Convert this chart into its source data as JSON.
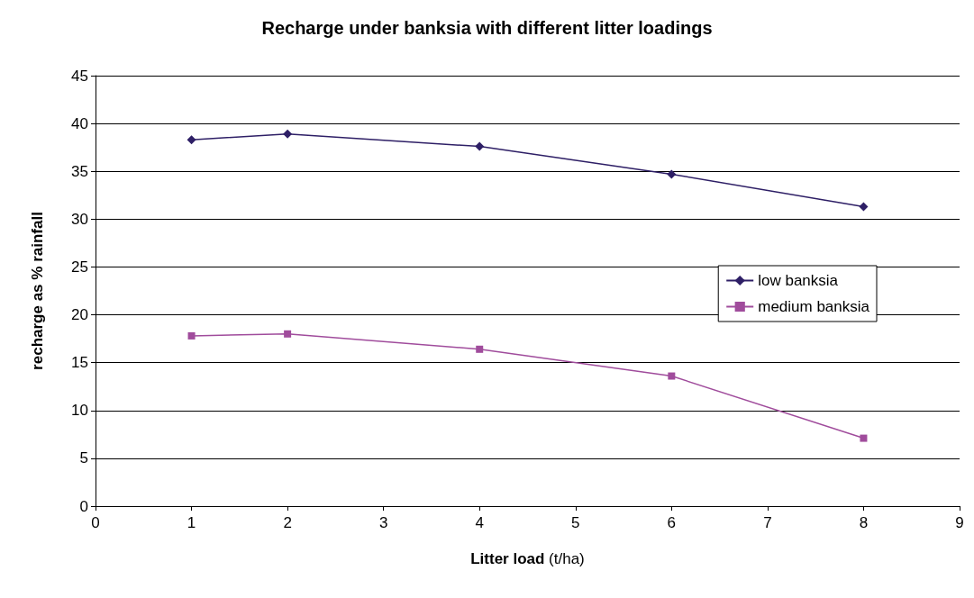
{
  "chart_data": {
    "type": "line",
    "title": "Recharge under banksia with different litter loadings",
    "xlabel": "Litter load (t/ha)",
    "ylabel": "recharge as % rainfall",
    "x": [
      1,
      2,
      4,
      6,
      8
    ],
    "series": [
      {
        "name": "low banksia",
        "color": "#2e1f66",
        "marker": "diamond",
        "values": [
          38.3,
          38.9,
          37.6,
          34.7,
          31.3
        ]
      },
      {
        "name": "medium banksia",
        "color": "#a04c9c",
        "marker": "square",
        "values": [
          17.8,
          18.0,
          16.4,
          13.6,
          7.1
        ]
      }
    ],
    "xlim": [
      0,
      9
    ],
    "xticks": [
      0,
      1,
      2,
      3,
      4,
      5,
      6,
      7,
      8,
      9
    ],
    "ylim": [
      0,
      45
    ],
    "yticks": [
      0,
      5,
      10,
      15,
      20,
      25,
      30,
      35,
      40,
      45
    ],
    "grid": "y",
    "legend": "right",
    "line_style": "solid"
  }
}
